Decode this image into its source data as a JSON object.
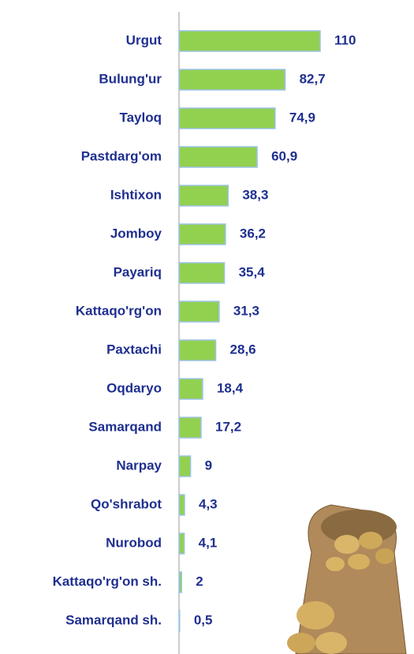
{
  "chart_data": {
    "type": "barh",
    "categories": [
      "Urgut",
      "Bulung'ur",
      "Tayloq",
      "Pastdarg'om",
      "Ishtixon",
      "Jomboy",
      "Payariq",
      "Kattaqo'rg'on",
      "Paxtachi",
      "Oqdaryo",
      "Samarqand",
      "Narpay",
      "Qo'shrabot",
      "Nurobod",
      "Kattaqo'rg'on sh.",
      "Samarqand sh."
    ],
    "values": [
      110,
      82.7,
      74.9,
      60.9,
      38.3,
      36.2,
      35.4,
      31.3,
      28.6,
      18.4,
      17.2,
      9,
      4.3,
      4.1,
      2,
      0.5
    ],
    "value_labels": [
      "110",
      "82,7",
      "74,9",
      "60,9",
      "38,3",
      "36,2",
      "35,4",
      "31,3",
      "28,6",
      "18,4",
      "17,2",
      "9",
      "4,3",
      "4,1",
      "2",
      "0,5"
    ],
    "color": "#92d050"
  }
}
